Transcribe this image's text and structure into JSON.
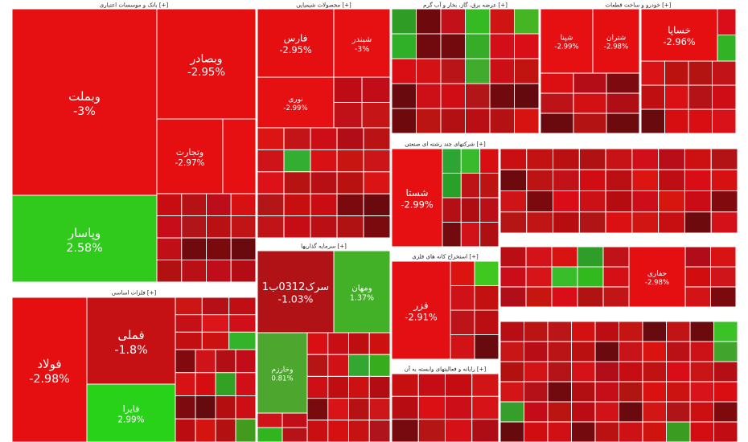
{
  "chart_data": {
    "type": "heatmap",
    "sectors": [
      {
        "header": "بانک و موسسات اعتباری [+]"
      },
      {
        "header": "محصولات شیمیایی [+]"
      },
      {
        "header": "عرضه برق، گاز، بخار و آب گرم [+]"
      },
      {
        "header": "خودرو و ساخت قطعات [+]"
      },
      {
        "header": "فلزات اساسی [+]"
      },
      {
        "header": "سرمایه گذاریها [+]"
      },
      {
        "header": "شرکتهای چند رشته ای صنعتی [+]"
      },
      {
        "header": "استخراج کانه های فلزی [+]"
      },
      {
        "header": "رایانه و فعالیتهای وابسته به آن [+]"
      }
    ],
    "tiles": [
      {
        "symbol": "وبملت",
        "change": "-3%",
        "value": -3.0
      },
      {
        "symbol": "وبصادر",
        "change": "-2.95%",
        "value": -2.95
      },
      {
        "symbol": "وتجارت",
        "change": "-2.97%",
        "value": -2.97
      },
      {
        "symbol": "وپاسار",
        "change": "2.58%",
        "value": 2.58
      },
      {
        "symbol": "فارس",
        "change": "-2.95%",
        "value": -2.95
      },
      {
        "symbol": "شبندر",
        "change": "-3%",
        "value": -3.0
      },
      {
        "symbol": "نوری",
        "change": "-2.99%",
        "value": -2.99
      },
      {
        "symbol": "شستا",
        "change": "-2.99%",
        "value": -2.99
      },
      {
        "symbol": "خساپا",
        "change": "-2.96%",
        "value": -2.96
      },
      {
        "symbol": "شپنا",
        "change": "-2.99%",
        "value": -2.99
      },
      {
        "symbol": "شتران",
        "change": "-2.98%",
        "value": -2.98
      },
      {
        "symbol": "فولاد",
        "change": "-2.98%",
        "value": -2.98
      },
      {
        "symbol": "فملی",
        "change": "-1.8%",
        "value": -1.8
      },
      {
        "symbol": "فایرا",
        "change": "2.99%",
        "value": 2.99
      },
      {
        "symbol": "سرک0312ب1",
        "change": "-1.03%",
        "value": -1.03
      },
      {
        "symbol": "ومهان",
        "change": "1.37%",
        "value": 1.37
      },
      {
        "symbol": "وخارزم",
        "change": "0.81%",
        "value": 0.81
      },
      {
        "symbol": "فزر",
        "change": "-2.91%",
        "value": -2.91
      },
      {
        "symbol": "حفاری",
        "change": "-2.98%",
        "value": -2.98
      }
    ],
    "colors": {
      "up": "#2eb82e",
      "down": "#d0121a",
      "deep_down": "#8a0d0d",
      "border": "#ffffff"
    }
  }
}
